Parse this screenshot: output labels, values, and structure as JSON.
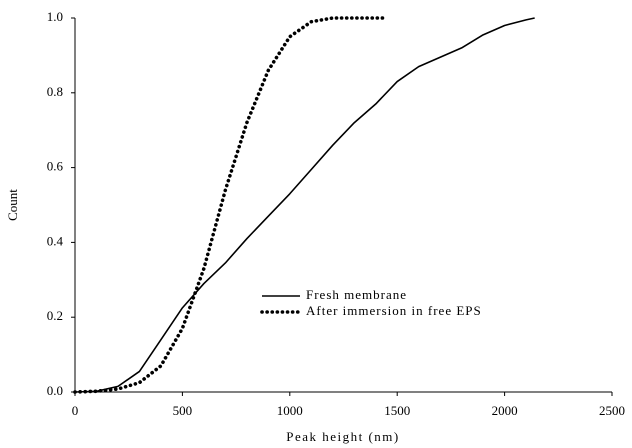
{
  "chart_data": {
    "type": "line",
    "xlabel": "Peak height (nm)",
    "ylabel": "Count",
    "xlim": [
      0,
      2500
    ],
    "xticks": [
      0,
      500,
      1000,
      1500,
      2000,
      2500
    ],
    "ylim": [
      0,
      1
    ],
    "yticks": [
      {
        "value": 0,
        "label": "0.0"
      },
      0.2,
      0.4,
      0.6,
      0.8,
      {
        "value": 1,
        "label": "1.0"
      }
    ],
    "grid": false,
    "series": [
      {
        "name": "Fresh membrane",
        "color": "#000000",
        "dash": "solid",
        "x": [
          0,
          100,
          200,
          300,
          400,
          500,
          600,
          700,
          800,
          900,
          1000,
          1100,
          1200,
          1300,
          1400,
          1500,
          1600,
          1700,
          1800,
          1900,
          2000,
          2100,
          2140
        ],
        "values": [
          0,
          0.002,
          0.015,
          0.055,
          0.14,
          0.225,
          0.29,
          0.345,
          0.41,
          0.47,
          0.53,
          0.595,
          0.66,
          0.72,
          0.77,
          0.83,
          0.87,
          0.895,
          0.92,
          0.955,
          0.98,
          0.995,
          1.0
        ]
      },
      {
        "name": "After immersion in free EPS",
        "color": "#000000",
        "dash": "dotted",
        "x": [
          0,
          100,
          200,
          300,
          400,
          500,
          600,
          700,
          800,
          900,
          1000,
          1100,
          1200,
          1300,
          1440
        ],
        "values": [
          0,
          0.002,
          0.008,
          0.025,
          0.07,
          0.17,
          0.33,
          0.54,
          0.72,
          0.86,
          0.95,
          0.99,
          1.0,
          1.0,
          1.0
        ]
      }
    ]
  }
}
